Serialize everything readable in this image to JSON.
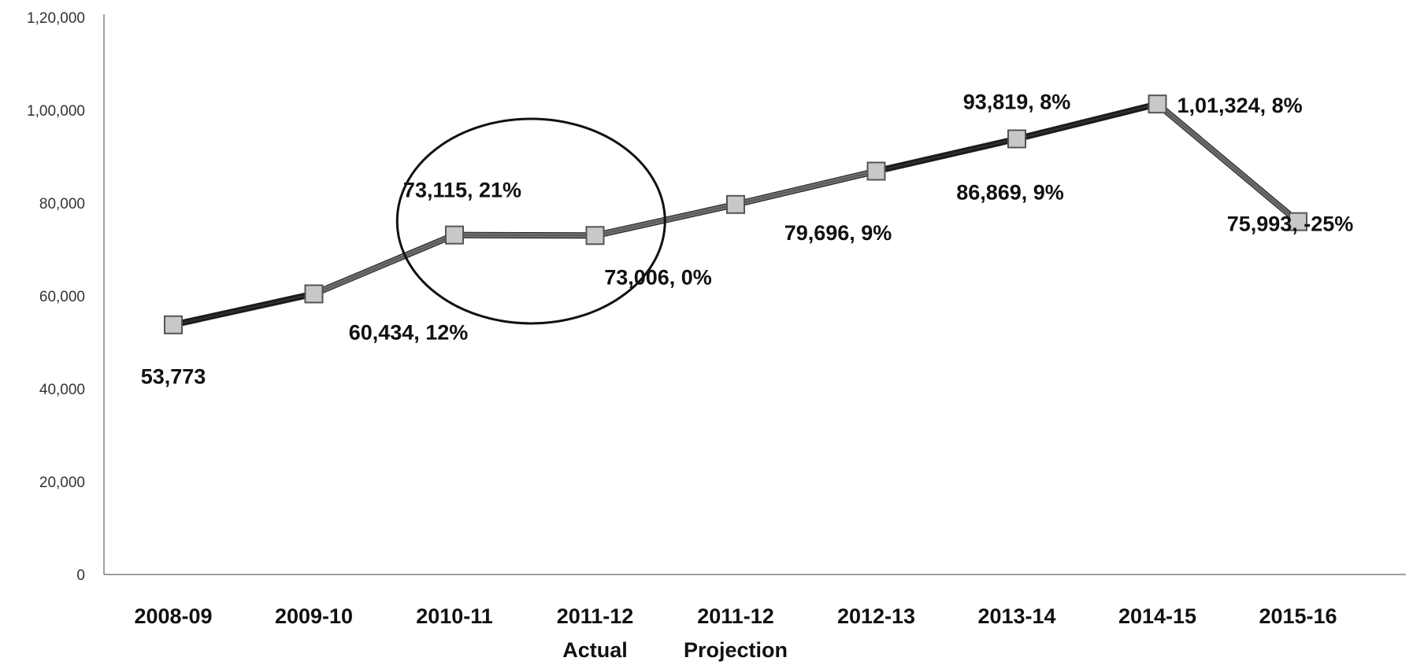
{
  "chart_data": {
    "type": "line",
    "title": "",
    "xlabel": "",
    "ylabel": "",
    "categories": [
      "2008-09",
      "2009-10",
      "2010-11",
      "2011-12",
      "2011-12",
      "2012-13",
      "2013-14",
      "2014-15",
      "2015-16"
    ],
    "category_sublabels": [
      "",
      "",
      "",
      "Actual",
      "Projection",
      "",
      "",
      "",
      ""
    ],
    "values": [
      53773,
      60434,
      73115,
      73006,
      79696,
      86869,
      93819,
      101324,
      75993
    ],
    "data_labels": [
      "53,773",
      "60,434, 12%",
      "73,115, 21%",
      "73,006, 0%",
      "79,696, 9%",
      "86,869, 9%",
      "93,819, 8%",
      "1,01,324, 8%",
      "75,993, -25%"
    ],
    "ylim": [
      0,
      120000
    ],
    "yticks": [
      0,
      20000,
      40000,
      60000,
      80000,
      100000,
      120000
    ],
    "ytick_labels": [
      "0",
      "20,000",
      "40,000",
      "60,000",
      "80,000",
      "1,00,000",
      "1,20,000"
    ],
    "grid": false,
    "legend": "none",
    "annotation": "ellipse around 2010-11 and 2011-12 Actual points",
    "colors": {
      "line": "#1c1c1c",
      "line_highlight": "#6e6e6e",
      "marker_fill": "#c8c8c8",
      "marker_stroke": "#555555",
      "axis": "#666666",
      "annotation": "#111111"
    }
  }
}
